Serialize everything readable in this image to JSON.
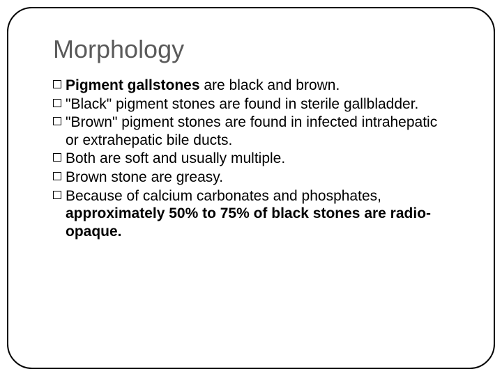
{
  "title": "Morphology",
  "items": [
    {
      "segments": [
        {
          "t": "Pigment gallstones ",
          "bold": true
        },
        {
          "t": "are black and brown.",
          "bold": false
        }
      ]
    },
    {
      "segments": [
        {
          "t": "\"Black\" pigment stones are found in sterile gallbladder.",
          "bold": false
        }
      ]
    },
    {
      "segments": [
        {
          "t": "\"Brown\" pigment stones are found in infected intrahepatic or extrahepatic bile ducts.",
          "bold": false
        }
      ]
    },
    {
      "segments": [
        {
          "t": "Both are soft and usually multiple.",
          "bold": false
        }
      ]
    },
    {
      "segments": [
        {
          "t": "Brown stone are greasy.",
          "bold": false
        }
      ]
    },
    {
      "segments": [
        {
          "t": "Because of calcium carbonates and phosphates, ",
          "bold": false
        },
        {
          "t": "approximately 50% to 75% of black stones are radio-opaque.",
          "bold": true
        }
      ]
    }
  ],
  "style": {
    "title_color": "#5a5a5a",
    "title_fontsize": 36,
    "body_fontsize": 21,
    "text_color": "#000000",
    "border_color": "#000000",
    "border_radius": 36,
    "background": "#ffffff"
  }
}
